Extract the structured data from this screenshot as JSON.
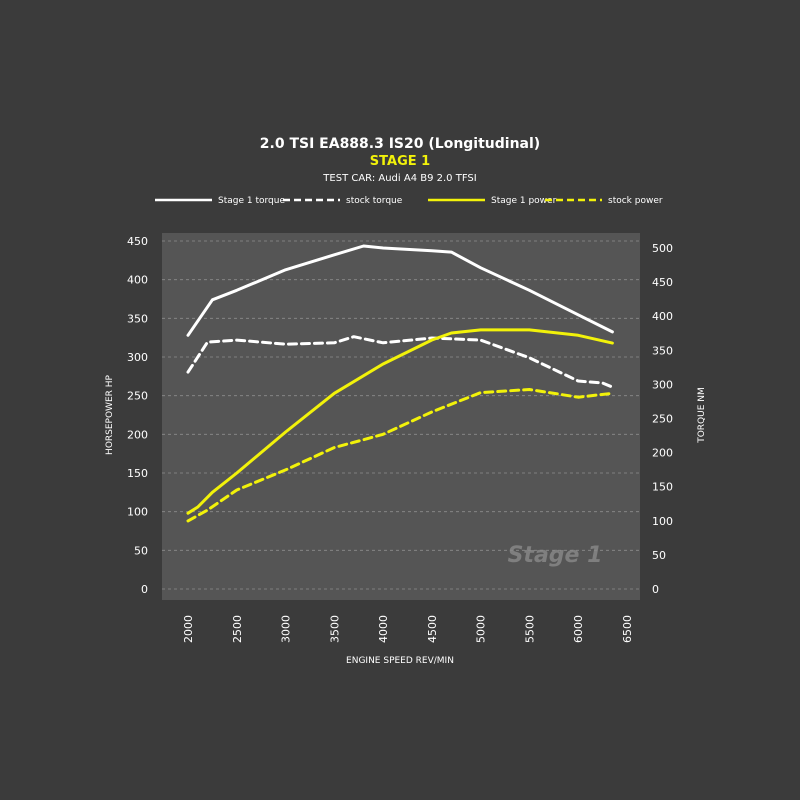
{
  "chart_data": {
    "type": "line",
    "title": "2.0 TSI EA888.3 IS20 (Longitudinal)",
    "subtitle": "STAGE 1",
    "caption": "TEST CAR: Audi A4 B9 2.0 TFSI",
    "xlabel": "ENGINE SPEED REV/MIN",
    "ylabel_left": "HORSEPOWER HP",
    "ylabel_right": "TORQUE NM",
    "xlim": [
      2000,
      6500
    ],
    "ylim_left": [
      0,
      450
    ],
    "ylim_right": [
      0,
      500
    ],
    "x_ticks": [
      2000,
      2500,
      3000,
      3500,
      4000,
      4500,
      5000,
      5500,
      6000,
      6500
    ],
    "y_ticks_left": [
      0,
      50,
      100,
      150,
      200,
      250,
      300,
      350,
      400,
      450
    ],
    "y_ticks_right": [
      0,
      50,
      100,
      150,
      200,
      250,
      300,
      350,
      400,
      450,
      500
    ],
    "grid": true,
    "legend_placement": "top",
    "watermark": "Stage 1",
    "series": [
      {
        "name": "Stage 1 torque",
        "axis": "right",
        "color": "#ffffff",
        "dash": false,
        "x": [
          2000,
          2250,
          2500,
          3000,
          3500,
          3800,
          4000,
          4500,
          4700,
          5000,
          5500,
          6000,
          6350
        ],
        "y": [
          372,
          424,
          438,
          468,
          490,
          503,
          500,
          496,
          494,
          471,
          438,
          402,
          377
        ]
      },
      {
        "name": "stock torque",
        "axis": "right",
        "color": "#ffffff",
        "dash": true,
        "x": [
          2000,
          2200,
          2500,
          3000,
          3500,
          3700,
          4000,
          4500,
          5000,
          5500,
          6000,
          6250,
          6350
        ],
        "y": [
          318,
          362,
          365,
          359,
          361,
          370,
          361,
          368,
          365,
          339,
          305,
          302,
          296
        ]
      },
      {
        "name": "Stage 1 power",
        "axis": "left",
        "color": "#f2f20a",
        "dash": false,
        "x": [
          2000,
          2100,
          2250,
          2500,
          3000,
          3500,
          4000,
          4500,
          4700,
          5000,
          5500,
          6000,
          6350
        ],
        "y": [
          98,
          106,
          125,
          150,
          203,
          253,
          291,
          322,
          331,
          335,
          335,
          328,
          318
        ]
      },
      {
        "name": "stock power",
        "axis": "left",
        "color": "#f2f20a",
        "dash": true,
        "x": [
          2000,
          2200,
          2500,
          3000,
          3500,
          3800,
          4000,
          4500,
          5000,
          5500,
          6000,
          6350
        ],
        "y": [
          88,
          102,
          128,
          154,
          183,
          193,
          200,
          229,
          254,
          258,
          248,
          253
        ]
      }
    ]
  }
}
